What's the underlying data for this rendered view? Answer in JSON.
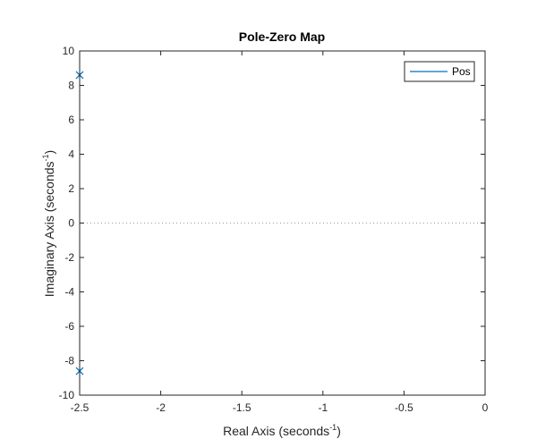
{
  "chart_data": {
    "type": "scatter",
    "title": "Pole-Zero Map",
    "xlabel": "Real Axis (seconds",
    "xlabel_sup": "-1",
    "xlabel_tail": ")",
    "ylabel": "Imaginary Axis (seconds",
    "ylabel_sup": "-1",
    "ylabel_tail": ")",
    "xlim": [
      -2.5,
      0
    ],
    "ylim": [
      -10,
      10
    ],
    "xticks": [
      -2.5,
      -2,
      -1.5,
      -1,
      -0.5,
      0
    ],
    "xtick_labels": [
      "-2.5",
      "-2",
      "-1.5",
      "-1",
      "-0.5",
      "0"
    ],
    "yticks": [
      -10,
      -8,
      -6,
      -4,
      -2,
      0,
      2,
      4,
      6,
      8,
      10
    ],
    "ytick_labels": [
      "-10",
      "-8",
      "-6",
      "-4",
      "-2",
      "0",
      "2",
      "4",
      "6",
      "8",
      "10"
    ],
    "grid": false,
    "zero_line": {
      "y": 0,
      "style": "dotted"
    },
    "legend_position": "top-right",
    "series": [
      {
        "name": "Pos",
        "color": "#0072bd",
        "marker": "x",
        "poles": [
          {
            "x": -2.5,
            "y": 8.6
          },
          {
            "x": -2.5,
            "y": -8.6
          }
        ]
      }
    ]
  }
}
